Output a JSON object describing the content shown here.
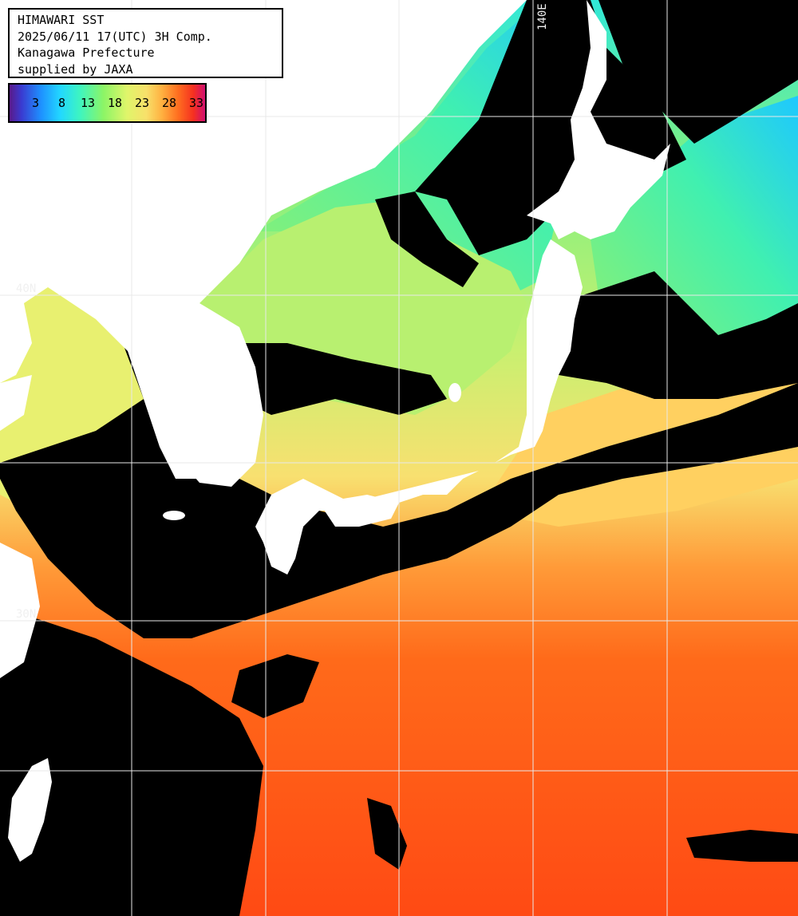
{
  "info": {
    "lines": [
      "HIMAWARI SST",
      "2025/06/11 17(UTC) 3H Comp.",
      "Kanagawa Prefecture",
      "supplied by JAXA"
    ]
  },
  "color_scale": {
    "labels": [
      "3",
      "8",
      "13",
      "18",
      "23",
      "28",
      "33"
    ],
    "unit": "",
    "colors": [
      "#5a1a8a",
      "#3a3ad0",
      "#1e90ff",
      "#22d8ff",
      "#3ef5c0",
      "#8cf566",
      "#dff56a",
      "#f8e06a",
      "#ffb040",
      "#ff7020",
      "#f53020",
      "#d01070"
    ]
  },
  "grid_labels": {
    "lon_top": "140E",
    "lat_upper": "40N",
    "lat_lower": "30N"
  },
  "colors": {
    "land": "#ffffff",
    "cloud_mask": "#000000",
    "grid": "#e8e8e8"
  }
}
